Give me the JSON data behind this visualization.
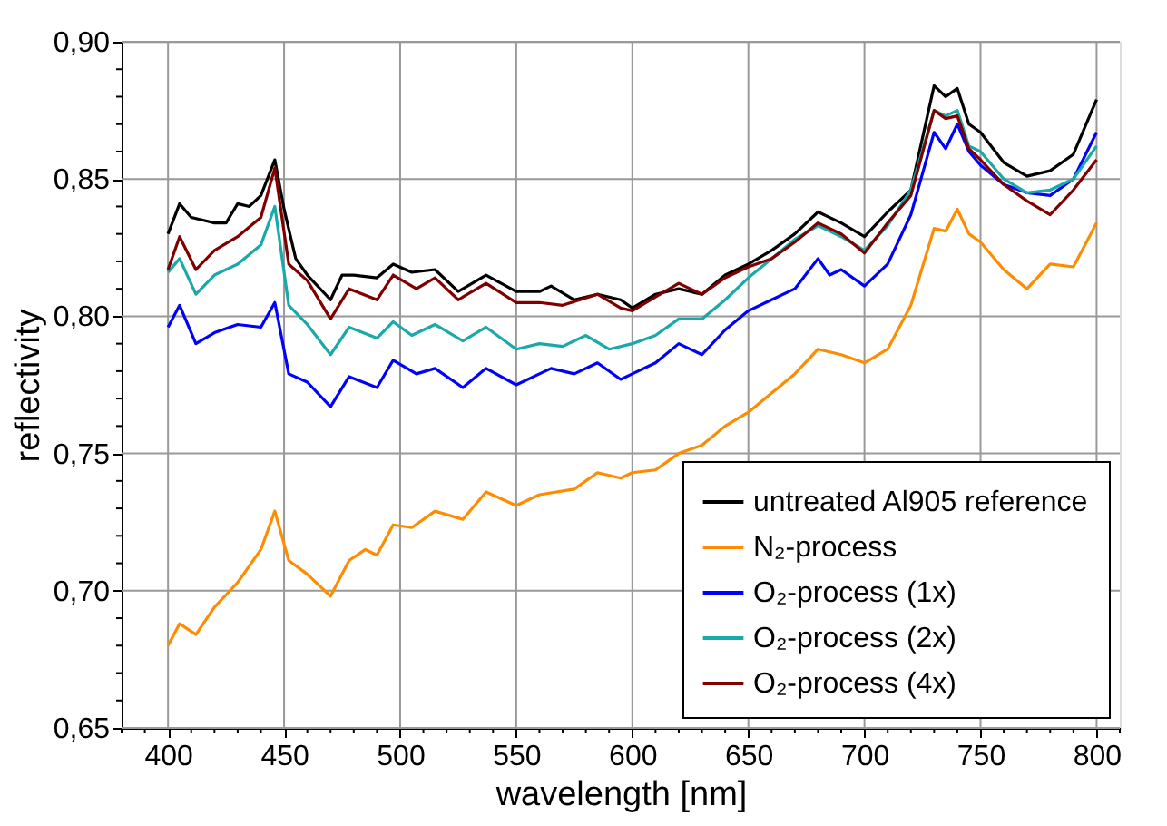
{
  "chart_data": {
    "type": "line",
    "xlabel": "wavelength [nm]",
    "ylabel": "reflectivity",
    "xlim": [
      380,
      810
    ],
    "ylim": [
      0.65,
      0.9
    ],
    "xticks": [
      {
        "value": 380,
        "label": null
      },
      {
        "value": 390,
        "label": null
      },
      400,
      {
        "value": 410,
        "label": null
      },
      {
        "value": 420,
        "label": null
      },
      {
        "value": 430,
        "label": null
      },
      {
        "value": 440,
        "label": null
      },
      450,
      {
        "value": 460,
        "label": null
      },
      {
        "value": 470,
        "label": null
      },
      {
        "value": 480,
        "label": null
      },
      {
        "value": 490,
        "label": null
      },
      500,
      {
        "value": 510,
        "label": null
      },
      {
        "value": 520,
        "label": null
      },
      {
        "value": 530,
        "label": null
      },
      {
        "value": 540,
        "label": null
      },
      550,
      {
        "value": 560,
        "label": null
      },
      {
        "value": 570,
        "label": null
      },
      {
        "value": 580,
        "label": null
      },
      {
        "value": 590,
        "label": null
      },
      600,
      {
        "value": 610,
        "label": null
      },
      {
        "value": 620,
        "label": null
      },
      {
        "value": 630,
        "label": null
      },
      {
        "value": 640,
        "label": null
      },
      650,
      {
        "value": 660,
        "label": null
      },
      {
        "value": 670,
        "label": null
      },
      {
        "value": 680,
        "label": null
      },
      {
        "value": 690,
        "label": null
      },
      700,
      {
        "value": 710,
        "label": null
      },
      {
        "value": 720,
        "label": null
      },
      {
        "value": 730,
        "label": null
      },
      {
        "value": 740,
        "label": null
      },
      750,
      {
        "value": 760,
        "label": null
      },
      {
        "value": 770,
        "label": null
      },
      {
        "value": 780,
        "label": null
      },
      {
        "value": 790,
        "label": null
      },
      800,
      {
        "value": 810,
        "label": null
      }
    ],
    "yticks": [
      {
        "value": 0.65,
        "label": "0,65"
      },
      {
        "value": 0.66,
        "label": null
      },
      {
        "value": 0.67,
        "label": null
      },
      {
        "value": 0.68,
        "label": null
      },
      {
        "value": 0.69,
        "label": null
      },
      {
        "value": 0.7,
        "label": "0,70"
      },
      {
        "value": 0.71,
        "label": null
      },
      {
        "value": 0.72,
        "label": null
      },
      {
        "value": 0.73,
        "label": null
      },
      {
        "value": 0.74,
        "label": null
      },
      {
        "value": 0.75,
        "label": "0,75"
      },
      {
        "value": 0.76,
        "label": null
      },
      {
        "value": 0.77,
        "label": null
      },
      {
        "value": 0.78,
        "label": null
      },
      {
        "value": 0.79,
        "label": null
      },
      {
        "value": 0.8,
        "label": "0,80"
      },
      {
        "value": 0.81,
        "label": null
      },
      {
        "value": 0.82,
        "label": null
      },
      {
        "value": 0.83,
        "label": null
      },
      {
        "value": 0.84,
        "label": null
      },
      {
        "value": 0.85,
        "label": "0,85"
      },
      {
        "value": 0.86,
        "label": null
      },
      {
        "value": 0.87,
        "label": null
      },
      {
        "value": 0.88,
        "label": null
      },
      {
        "value": 0.89,
        "label": null
      },
      {
        "value": 0.9,
        "label": "0,90"
      }
    ],
    "grid": true,
    "legend": "bottom right",
    "marker": "none",
    "line_style": "solid",
    "series": [
      {
        "name": "untreated Al905 reference",
        "color": "#000000",
        "x": [
          400,
          405,
          410,
          415,
          420,
          425,
          430,
          435,
          440,
          446,
          450,
          455,
          460,
          470,
          475,
          480,
          490,
          497,
          505,
          515,
          525,
          537,
          550,
          560,
          565,
          575,
          585,
          595,
          600,
          610,
          620,
          630,
          640,
          650,
          660,
          670,
          680,
          690,
          700,
          710,
          720,
          730,
          735,
          740,
          745,
          750,
          760,
          770,
          780,
          790,
          800
        ],
        "values": [
          0.83,
          0.841,
          0.836,
          0.835,
          0.834,
          0.834,
          0.841,
          0.84,
          0.844,
          0.857,
          0.839,
          0.821,
          0.815,
          0.806,
          0.815,
          0.815,
          0.814,
          0.819,
          0.816,
          0.817,
          0.809,
          0.815,
          0.809,
          0.809,
          0.811,
          0.806,
          0.808,
          0.806,
          0.803,
          0.808,
          0.81,
          0.808,
          0.815,
          0.819,
          0.824,
          0.83,
          0.838,
          0.834,
          0.829,
          0.838,
          0.846,
          0.884,
          0.88,
          0.883,
          0.87,
          0.867,
          0.856,
          0.851,
          0.853,
          0.859,
          0.879
        ]
      },
      {
        "name": "N₂-process",
        "color": "#ff8c00",
        "x": [
          400,
          405,
          412,
          420,
          430,
          440,
          446,
          452,
          460,
          470,
          478,
          485,
          490,
          497,
          505,
          515,
          527,
          537,
          550,
          560,
          575,
          585,
          595,
          600,
          610,
          620,
          630,
          640,
          650,
          660,
          670,
          680,
          690,
          700,
          710,
          720,
          730,
          735,
          740,
          745,
          750,
          760,
          770,
          780,
          790,
          800
        ],
        "values": [
          0.68,
          0.688,
          0.684,
          0.694,
          0.703,
          0.715,
          0.729,
          0.711,
          0.706,
          0.698,
          0.711,
          0.715,
          0.713,
          0.724,
          0.723,
          0.729,
          0.726,
          0.736,
          0.731,
          0.735,
          0.737,
          0.743,
          0.741,
          0.743,
          0.744,
          0.75,
          0.753,
          0.76,
          0.765,
          0.772,
          0.779,
          0.788,
          0.786,
          0.783,
          0.788,
          0.804,
          0.832,
          0.831,
          0.839,
          0.83,
          0.827,
          0.817,
          0.81,
          0.819,
          0.818,
          0.834
        ]
      },
      {
        "name": "O₂-process (1x)",
        "color": "#0000ff",
        "x": [
          400,
          405,
          412,
          420,
          430,
          440,
          446,
          452,
          460,
          470,
          478,
          490,
          497,
          507,
          515,
          527,
          537,
          550,
          560,
          565,
          575,
          585,
          595,
          600,
          610,
          620,
          630,
          640,
          650,
          660,
          670,
          680,
          685,
          690,
          700,
          710,
          720,
          730,
          735,
          740,
          745,
          750,
          760,
          770,
          780,
          790,
          800
        ],
        "values": [
          0.796,
          0.804,
          0.79,
          0.794,
          0.797,
          0.796,
          0.805,
          0.779,
          0.776,
          0.767,
          0.778,
          0.774,
          0.784,
          0.779,
          0.781,
          0.774,
          0.781,
          0.775,
          0.779,
          0.781,
          0.779,
          0.783,
          0.777,
          0.779,
          0.783,
          0.79,
          0.786,
          0.795,
          0.802,
          0.806,
          0.81,
          0.821,
          0.815,
          0.817,
          0.811,
          0.819,
          0.837,
          0.867,
          0.861,
          0.87,
          0.86,
          0.855,
          0.848,
          0.845,
          0.844,
          0.85,
          0.867
        ]
      },
      {
        "name": "O₂-process (2x)",
        "color": "#1aa9a9",
        "x": [
          400,
          405,
          412,
          420,
          430,
          440,
          446,
          452,
          460,
          470,
          478,
          490,
          497,
          505,
          515,
          527,
          537,
          550,
          560,
          570,
          580,
          590,
          600,
          610,
          620,
          630,
          640,
          650,
          660,
          670,
          680,
          690,
          700,
          710,
          720,
          730,
          735,
          740,
          745,
          750,
          760,
          770,
          780,
          790,
          800
        ],
        "values": [
          0.816,
          0.821,
          0.808,
          0.815,
          0.819,
          0.826,
          0.84,
          0.804,
          0.797,
          0.786,
          0.796,
          0.792,
          0.798,
          0.793,
          0.797,
          0.791,
          0.796,
          0.788,
          0.79,
          0.789,
          0.793,
          0.788,
          0.79,
          0.793,
          0.799,
          0.799,
          0.806,
          0.814,
          0.821,
          0.828,
          0.833,
          0.829,
          0.824,
          0.833,
          0.846,
          0.875,
          0.873,
          0.875,
          0.862,
          0.86,
          0.85,
          0.845,
          0.846,
          0.85,
          0.862
        ]
      },
      {
        "name": "O₂-process (4x)",
        "color": "#800000",
        "x": [
          400,
          405,
          412,
          420,
          430,
          440,
          446,
          452,
          460,
          470,
          478,
          490,
          497,
          507,
          515,
          525,
          537,
          550,
          560,
          570,
          585,
          595,
          600,
          610,
          620,
          630,
          640,
          650,
          660,
          670,
          680,
          690,
          700,
          710,
          720,
          730,
          735,
          740,
          745,
          750,
          760,
          770,
          780,
          790,
          800
        ],
        "values": [
          0.817,
          0.829,
          0.817,
          0.824,
          0.829,
          0.836,
          0.854,
          0.819,
          0.813,
          0.799,
          0.81,
          0.806,
          0.815,
          0.81,
          0.814,
          0.806,
          0.812,
          0.805,
          0.805,
          0.804,
          0.808,
          0.803,
          0.802,
          0.807,
          0.812,
          0.808,
          0.814,
          0.818,
          0.821,
          0.827,
          0.834,
          0.83,
          0.823,
          0.834,
          0.844,
          0.875,
          0.872,
          0.873,
          0.861,
          0.857,
          0.848,
          0.842,
          0.837,
          0.846,
          0.857
        ]
      }
    ]
  }
}
